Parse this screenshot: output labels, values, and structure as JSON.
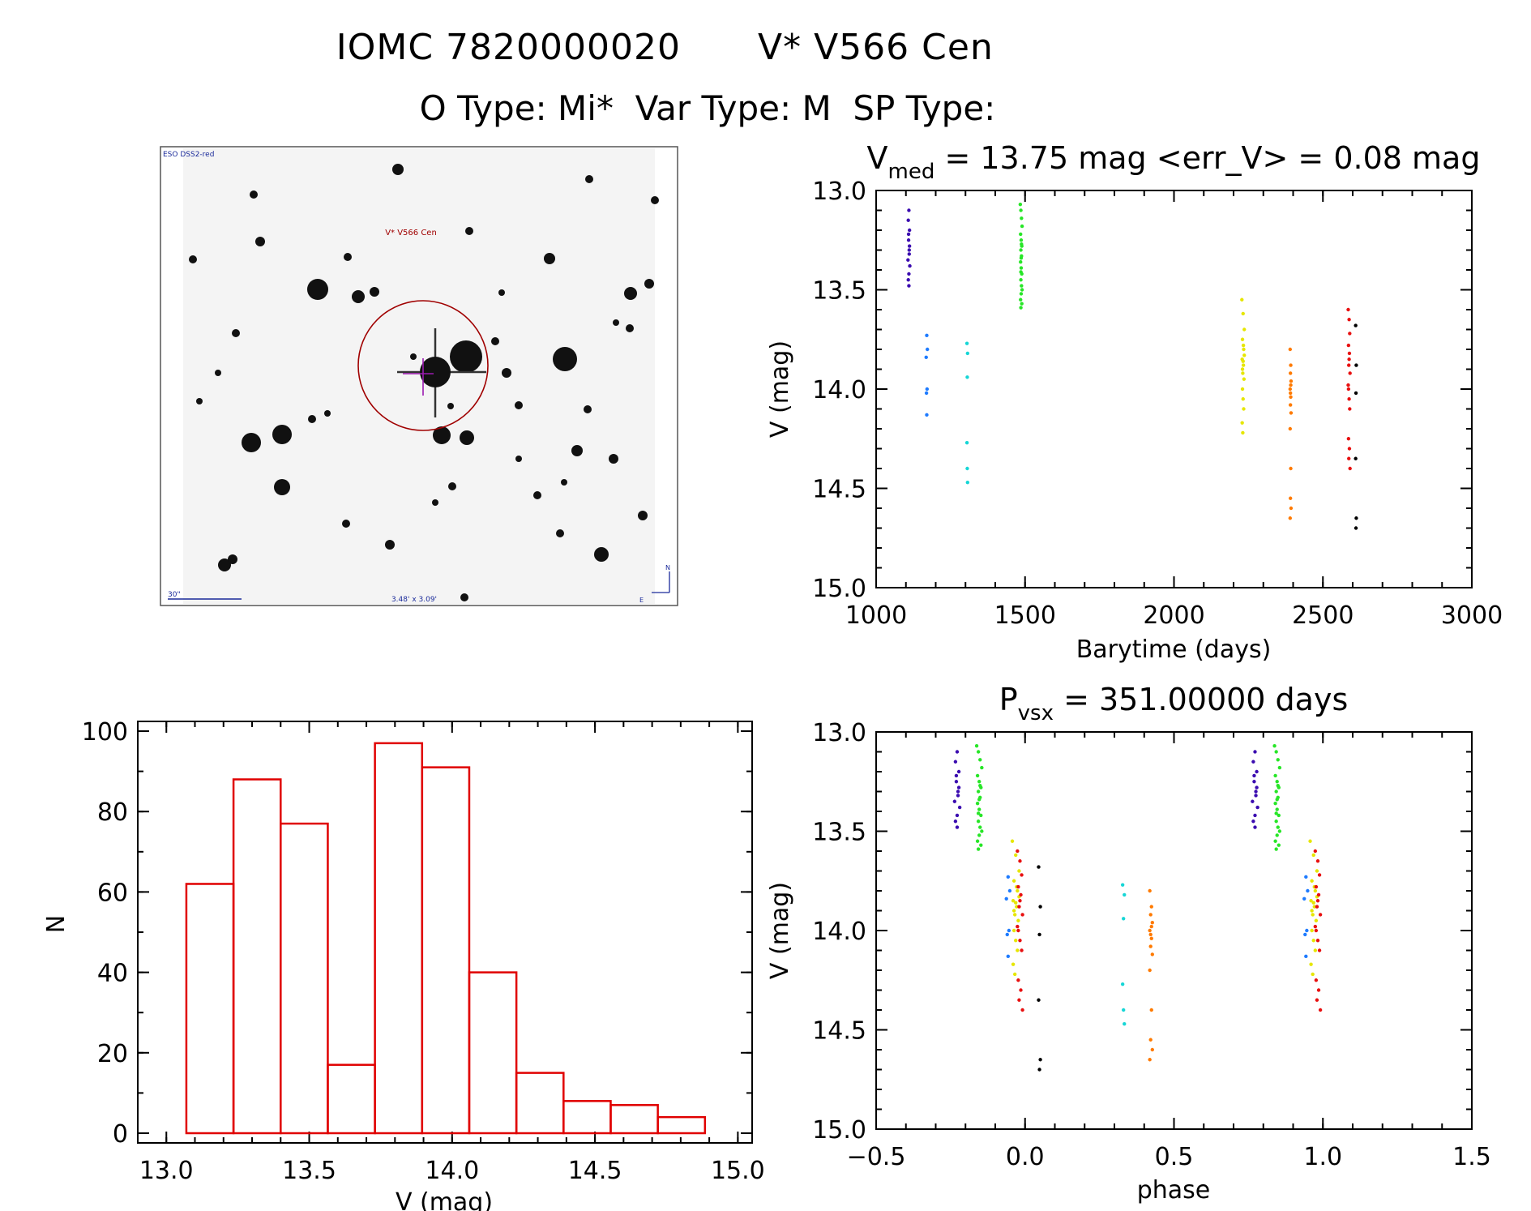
{
  "header": {
    "title_left": "IOMC 7820000020",
    "title_right": "V* V566 Cen",
    "subtitle": "O Type: Mi*  Var Type: M  SP Type:"
  },
  "image_panel": {
    "survey_label": "ESO DSS2-red",
    "target_label": "V* V566 Cen",
    "scale_label": "30\"",
    "fov_label": "3.48' x 3.09'",
    "north": "N",
    "east": "E"
  },
  "colors": {
    "hist": "#e00000",
    "seasons": [
      "#3b0cb0",
      "#1e7bff",
      "#16d6d6",
      "#27e627",
      "#e6e600",
      "#ff7a00",
      "#e81010"
    ]
  },
  "chart_data": [
    {
      "id": "light_curve",
      "type": "scatter",
      "title_main": "V",
      "title_sub": "med",
      "title_rest": " = 13.75 mag <err_V> = 0.08 mag",
      "xlabel": "Barytime (days)",
      "ylabel": "V (mag)",
      "xlim": [
        1000,
        3000
      ],
      "ylim": [
        15.0,
        13.0
      ],
      "xticks": [
        "1000",
        "1500",
        "2000",
        "2500",
        "3000"
      ],
      "yticks": [
        "13.0",
        "13.5",
        "14.0",
        "14.5",
        "15.0"
      ],
      "series": [
        {
          "x": [
            1110,
            1108,
            1112,
            1109,
            1111,
            1107,
            1113,
            1110,
            1108,
            1112,
            1109,
            1111,
            1110
          ],
          "y": [
            13.1,
            13.15,
            13.2,
            13.25,
            13.3,
            13.35,
            13.38,
            13.42,
            13.45,
            13.28,
            13.22,
            13.32,
            13.48
          ]
        },
        {
          "x": [
            1170,
            1172,
            1168,
            1171,
            1169,
            1170
          ],
          "y": [
            13.73,
            13.8,
            13.84,
            14.0,
            14.02,
            14.13
          ]
        },
        {
          "x": [
            1305,
            1307,
            1306,
            1305,
            1306,
            1307
          ],
          "y": [
            13.77,
            13.82,
            13.94,
            14.27,
            14.4,
            14.47
          ]
        },
        {
          "x": [
            1484,
            1486,
            1488,
            1490,
            1485,
            1487,
            1489,
            1486,
            1488,
            1485,
            1487,
            1489,
            1486,
            1488,
            1490,
            1487,
            1485,
            1489,
            1486,
            1488,
            1487,
            1486
          ],
          "y": [
            13.07,
            13.1,
            13.14,
            13.18,
            13.22,
            13.25,
            13.28,
            13.3,
            13.33,
            13.36,
            13.39,
            13.42,
            13.45,
            13.48,
            13.5,
            13.52,
            13.55,
            13.57,
            13.59,
            13.27,
            13.34,
            13.41
          ]
        },
        {
          "x": [
            2228,
            2232,
            2236,
            2230,
            2234,
            2229,
            2233,
            2231,
            2235,
            2230,
            2232,
            2234,
            2229,
            2231,
            2233,
            2236,
            2230,
            2232
          ],
          "y": [
            13.55,
            13.62,
            13.7,
            13.75,
            13.8,
            13.85,
            13.88,
            13.92,
            13.95,
            14.0,
            14.05,
            14.1,
            14.17,
            14.22,
            13.78,
            13.83,
            13.9,
            13.86
          ]
        },
        {
          "x": [
            2390,
            2392,
            2391,
            2393,
            2390,
            2392,
            2391,
            2393,
            2390,
            2392,
            2391,
            2393,
            2390,
            2392,
            2391
          ],
          "y": [
            13.8,
            13.88,
            13.92,
            13.96,
            14.0,
            14.04,
            14.08,
            14.12,
            14.2,
            14.4,
            14.55,
            14.6,
            14.65,
            13.98,
            14.02
          ]
        },
        {
          "x": [
            2585,
            2588,
            2590,
            2586,
            2589,
            2587,
            2591,
            2585,
            2588,
            2590,
            2586,
            2589,
            2587,
            2591,
            2588,
            2586
          ],
          "y": [
            13.6,
            13.65,
            13.72,
            13.78,
            13.82,
            13.88,
            13.92,
            13.98,
            14.05,
            14.1,
            14.25,
            14.3,
            14.35,
            14.4,
            13.85,
            14.0
          ]
        },
        {
          "x": [
            2610,
            2612,
            2611,
            2610,
            2612,
            2611
          ],
          "y": [
            13.68,
            13.88,
            14.02,
            14.35,
            14.65,
            14.7
          ]
        }
      ]
    },
    {
      "id": "histogram",
      "type": "bar",
      "xlabel": "V (mag)",
      "ylabel": "N",
      "xlim": [
        12.9,
        15.05
      ],
      "ylim": [
        0,
        100
      ],
      "xticks": [
        "13.0",
        "13.5",
        "14.0",
        "14.5",
        "15.0"
      ],
      "yticks": [
        "0",
        "20",
        "40",
        "60",
        "80",
        "100"
      ],
      "bin_edges": [
        13.07,
        13.235,
        13.4,
        13.565,
        13.73,
        13.895,
        14.06,
        14.225,
        14.39,
        14.555,
        14.72,
        14.885
      ],
      "values": [
        62,
        88,
        77,
        17,
        97,
        91,
        40,
        15,
        8,
        7,
        4
      ]
    },
    {
      "id": "phased",
      "type": "scatter",
      "title_main": "P",
      "title_sub": "vsx",
      "title_rest": " = 351.00000 days",
      "xlabel": "phase",
      "ylabel": "V (mag)",
      "xlim": [
        -0.5,
        1.5
      ],
      "ylim": [
        15.0,
        13.0
      ],
      "xticks": [
        "−0.5",
        "0.0",
        "0.5",
        "1.0",
        "1.5"
      ],
      "yticks": [
        "13.0",
        "13.5",
        "14.0",
        "14.5",
        "15.0"
      ],
      "period": 351.0,
      "epoch": 1190,
      "source_series": "light_curve"
    }
  ]
}
